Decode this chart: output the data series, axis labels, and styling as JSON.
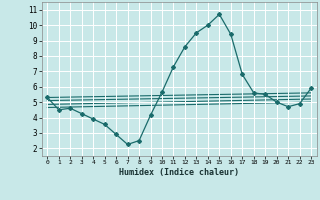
{
  "xlabel": "Humidex (Indice chaleur)",
  "bg_color": "#c8e8e8",
  "grid_color": "#ffffff",
  "line_color": "#1a6b6b",
  "xlim": [
    -0.5,
    23.5
  ],
  "ylim": [
    1.5,
    11.5
  ],
  "xticks": [
    0,
    1,
    2,
    3,
    4,
    5,
    6,
    7,
    8,
    9,
    10,
    11,
    12,
    13,
    14,
    15,
    16,
    17,
    18,
    19,
    20,
    21,
    22,
    23
  ],
  "yticks": [
    2,
    3,
    4,
    5,
    6,
    7,
    8,
    9,
    10,
    11
  ],
  "main_x": [
    0,
    1,
    2,
    3,
    4,
    5,
    6,
    7,
    8,
    9,
    10,
    11,
    12,
    13,
    14,
    15,
    16,
    17,
    18,
    19,
    20,
    21,
    22,
    23
  ],
  "main_y": [
    5.3,
    4.5,
    4.6,
    4.25,
    3.9,
    3.55,
    2.9,
    2.25,
    2.5,
    4.15,
    5.65,
    7.3,
    8.6,
    9.5,
    10.0,
    10.7,
    9.4,
    6.8,
    5.6,
    5.5,
    5.0,
    4.7,
    4.9,
    5.9
  ],
  "ref_lines": [
    {
      "x": [
        0,
        23
      ],
      "y": [
        5.3,
        5.6
      ]
    },
    {
      "x": [
        0,
        23
      ],
      "y": [
        5.1,
        5.4
      ]
    },
    {
      "x": [
        0,
        23
      ],
      "y": [
        4.85,
        5.2
      ]
    },
    {
      "x": [
        0,
        23
      ],
      "y": [
        4.65,
        5.0
      ]
    }
  ]
}
